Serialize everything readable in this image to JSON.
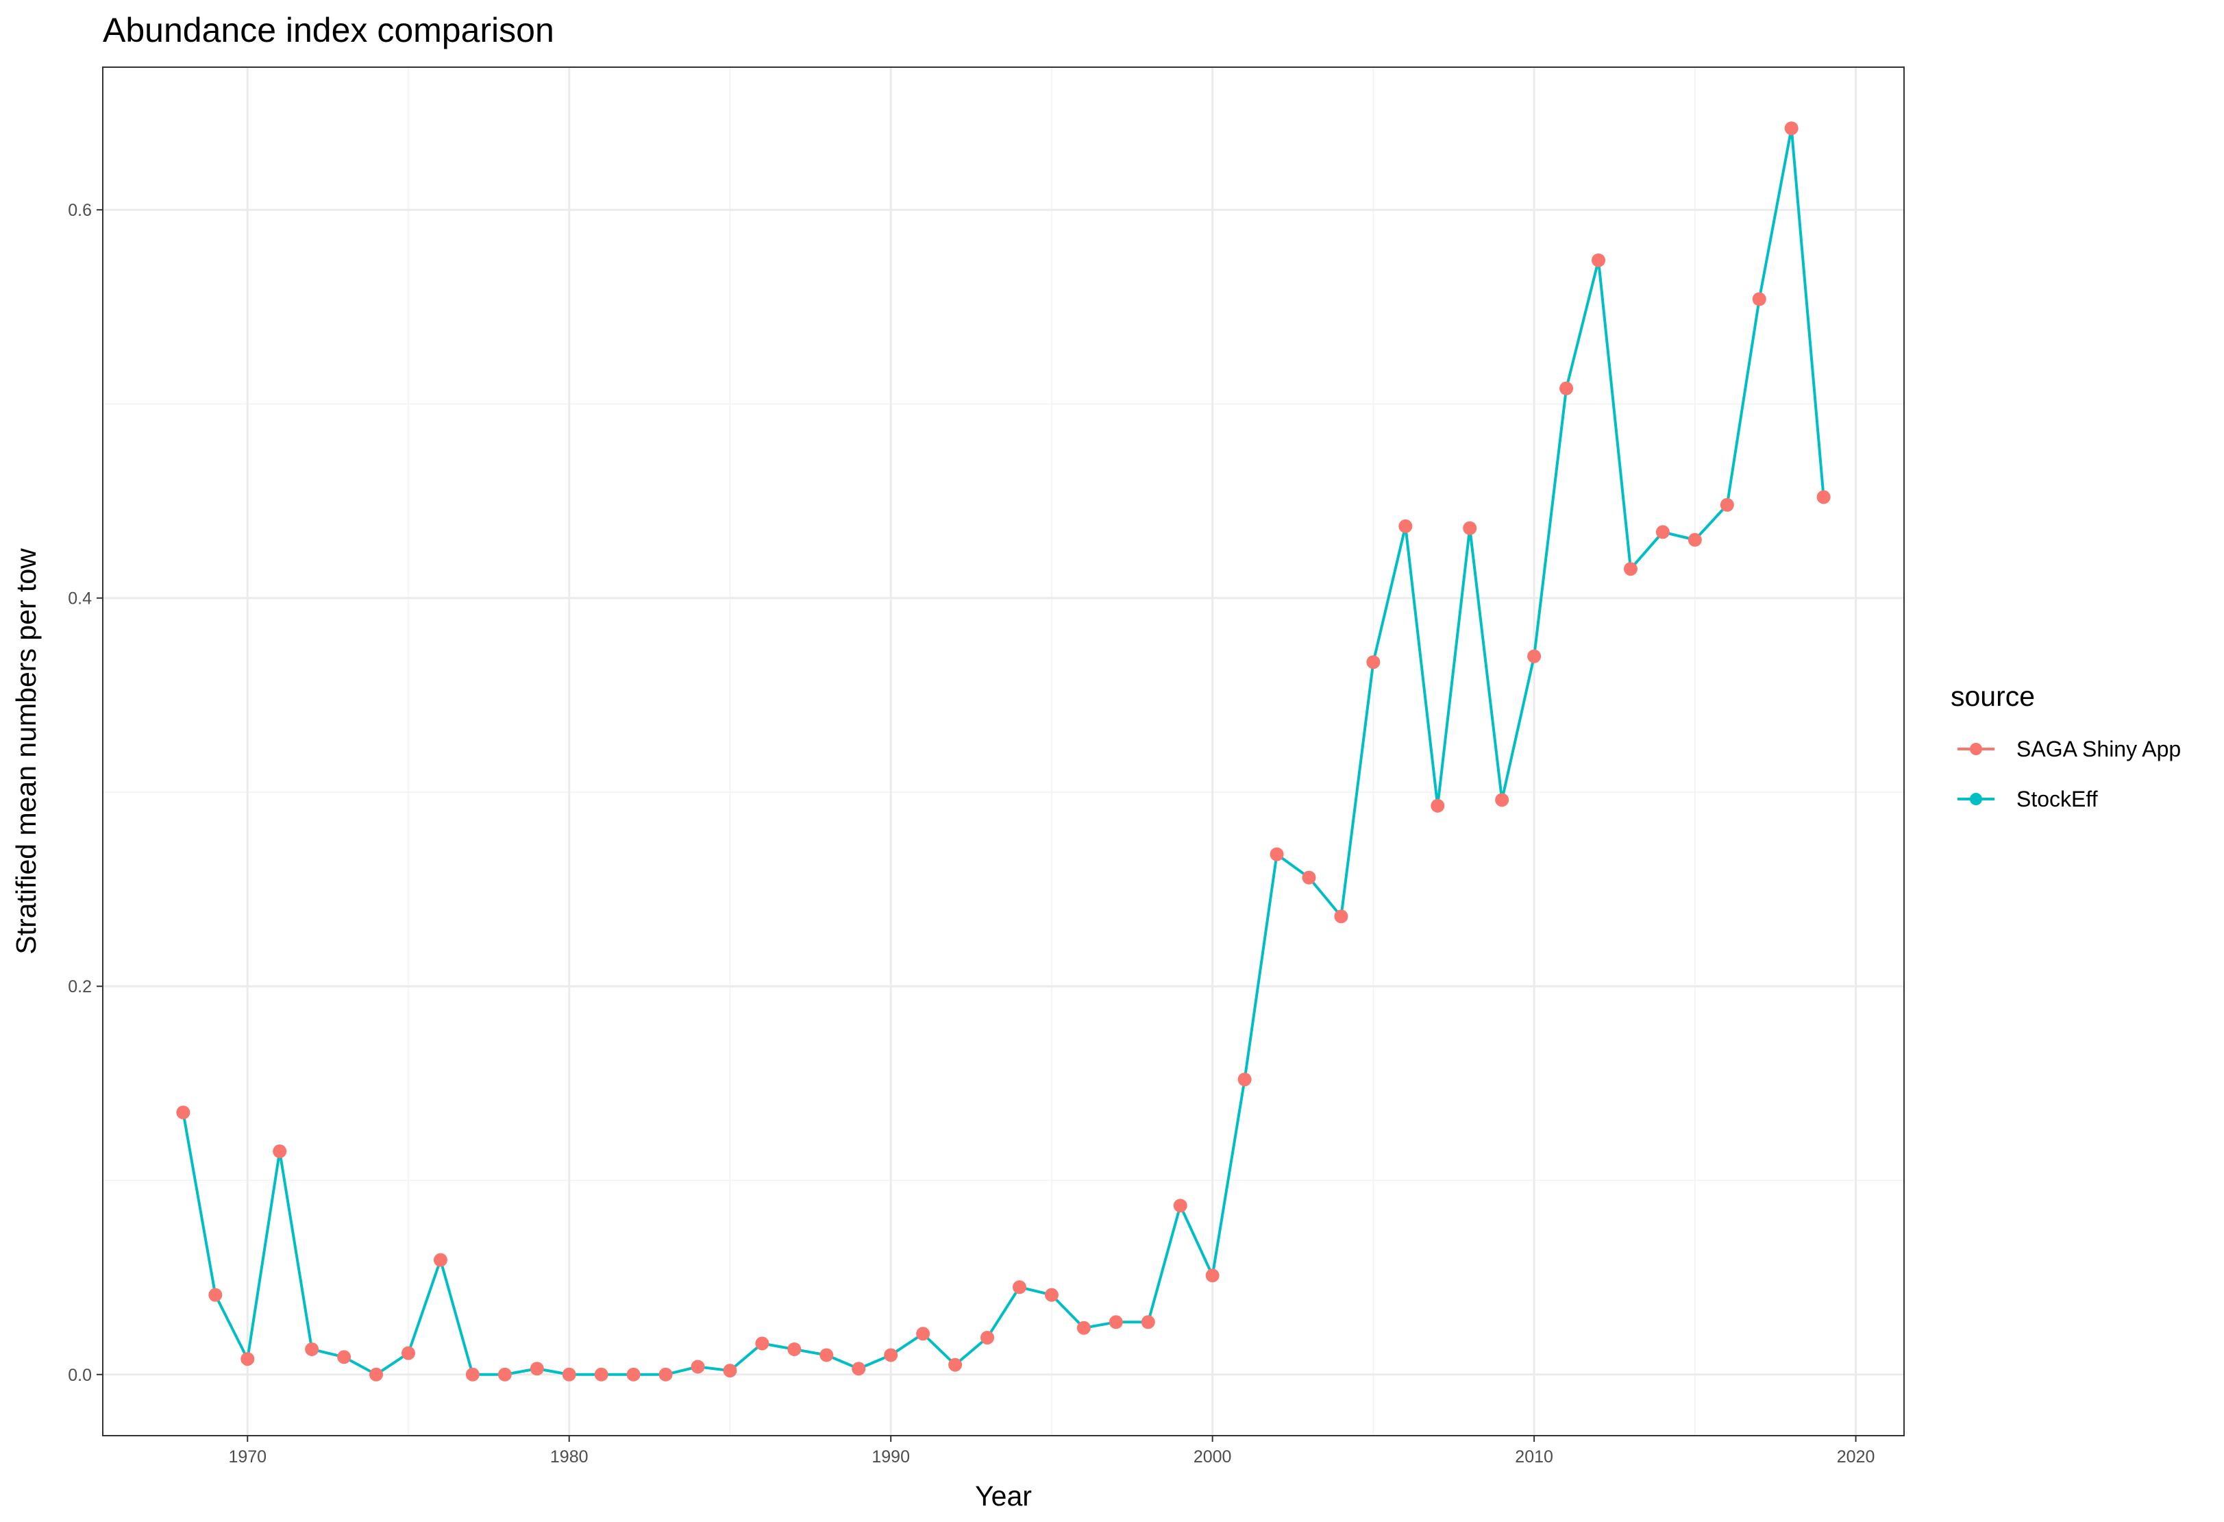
{
  "chart_data": {
    "type": "line",
    "title": "Abundance index comparison",
    "xlabel": "Year",
    "ylabel": "Stratified mean numbers per tow",
    "xlim": [
      1965.5,
      2021.5
    ],
    "ylim": [
      -0.0315,
      0.6735
    ],
    "x_ticks": [
      1970,
      1980,
      1990,
      2000,
      2010,
      2020
    ],
    "x_tick_labels": [
      "1970",
      "1980",
      "1990",
      "2000",
      "2010",
      "2020"
    ],
    "y_ticks": [
      0.0,
      0.2,
      0.4,
      0.6
    ],
    "y_tick_labels": [
      "0.0",
      "0.2",
      "0.4",
      "0.6"
    ],
    "grid": true,
    "legend_position": "right",
    "legend_title": "source",
    "x": [
      1968,
      1969,
      1970,
      1971,
      1972,
      1973,
      1974,
      1975,
      1976,
      1977,
      1978,
      1979,
      1980,
      1981,
      1982,
      1983,
      1984,
      1985,
      1986,
      1987,
      1988,
      1989,
      1990,
      1991,
      1992,
      1993,
      1994,
      1995,
      1996,
      1997,
      1998,
      1999,
      2000,
      2001,
      2002,
      2003,
      2004,
      2005,
      2006,
      2007,
      2008,
      2009,
      2010,
      2011,
      2012,
      2013,
      2014,
      2015,
      2016,
      2017,
      2018,
      2019
    ],
    "series": [
      {
        "name": "SAGA Shiny App",
        "color": "#F8766D",
        "mark": "point",
        "values": [
          0.135,
          0.041,
          0.008,
          0.115,
          0.013,
          0.009,
          0.0,
          0.011,
          0.059,
          0.0,
          0.0,
          0.003,
          0.0,
          0.0,
          0.0,
          0.0,
          0.004,
          0.002,
          0.016,
          0.013,
          0.01,
          0.003,
          0.01,
          0.021,
          0.005,
          0.019,
          0.045,
          0.041,
          0.024,
          0.027,
          0.027,
          0.087,
          0.051,
          0.152,
          0.268,
          0.256,
          0.236,
          0.367,
          0.437,
          0.293,
          0.436,
          0.296,
          0.37,
          0.508,
          0.574,
          0.415,
          0.434,
          0.43,
          0.448,
          0.554,
          0.642,
          0.452
        ]
      },
      {
        "name": "StockEff",
        "color": "#00BFC4",
        "mark": "line",
        "values": [
          0.135,
          0.041,
          0.008,
          0.115,
          0.013,
          0.009,
          0.0,
          0.011,
          0.059,
          0.0,
          0.0,
          0.003,
          0.0,
          0.0,
          0.0,
          0.0,
          0.004,
          0.002,
          0.016,
          0.013,
          0.01,
          0.003,
          0.01,
          0.021,
          0.005,
          0.019,
          0.045,
          0.041,
          0.024,
          0.027,
          0.027,
          0.087,
          0.051,
          0.152,
          0.268,
          0.256,
          0.236,
          0.367,
          0.437,
          0.293,
          0.436,
          0.296,
          0.37,
          0.508,
          0.574,
          0.415,
          0.434,
          0.43,
          0.448,
          0.554,
          0.642,
          0.452
        ]
      }
    ]
  }
}
